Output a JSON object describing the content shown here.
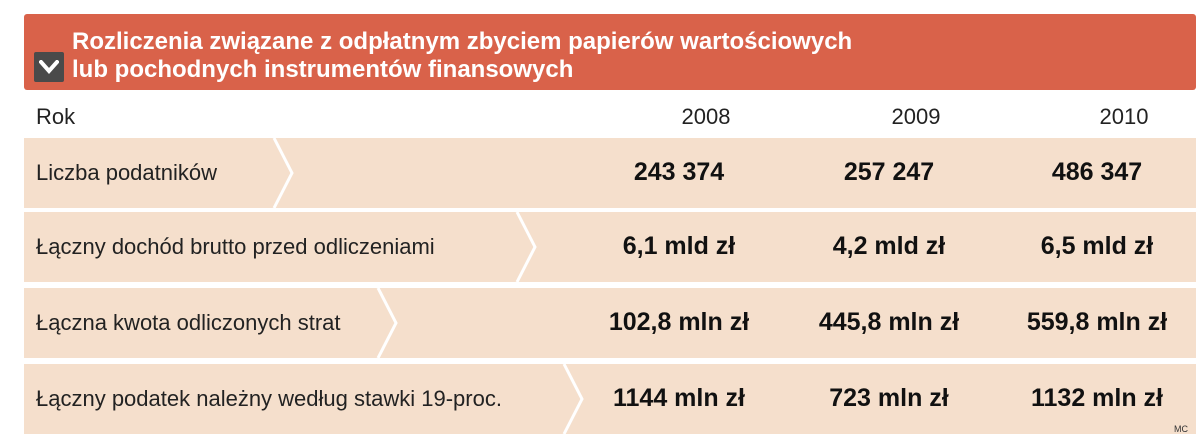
{
  "header": {
    "title_line1": "Rozliczenia związane z odpłatnym zbyciem papierów wartościowych",
    "title_line2": "lub pochodnych instrumentów finansowych"
  },
  "table": {
    "year_header_label": "Rok",
    "years": [
      "2008",
      "2009",
      "2010"
    ],
    "rows": [
      {
        "label": "Liczba podatników",
        "values": [
          "243 374",
          "257 247",
          "486 347"
        ]
      },
      {
        "label": "Łączny dochód brutto przed odliczeniami",
        "values": [
          "6,1 mld zł",
          "4,2 mld zł",
          "6,5 mld zł"
        ]
      },
      {
        "label": "Łączna kwota odliczonych strat",
        "values": [
          "102,8 mln zł",
          "445,8 mln zł",
          "559,8 mln zł"
        ]
      },
      {
        "label": "Łączny podatek należny według stawki 19-proc.",
        "values": [
          "1144 mln zł",
          "723 mln zł",
          "1132 mln zł"
        ]
      }
    ]
  },
  "source": "MC",
  "colors": {
    "header_bg": "#d9624a",
    "row_bg": "#f5dfcc",
    "text": "#222222"
  },
  "chart_data": {
    "type": "table",
    "columns": [
      "Rok",
      "2008",
      "2009",
      "2010"
    ],
    "rows": [
      [
        "Liczba podatników",
        "243 374",
        "257 247",
        "486 347"
      ],
      [
        "Łączny dochód brutto przed odliczeniami",
        "6,1 mld zł",
        "4,2 mld zł",
        "6,5 mld zł"
      ],
      [
        "Łączna kwota odliczonych strat",
        "102,8 mln zł",
        "445,8 mln zł",
        "559,8 mln zł"
      ],
      [
        "Łączny podatek należny według stawki 19-proc.",
        "1144 mln zł",
        "723 mln zł",
        "1132 mln zł"
      ]
    ],
    "title": "Rozliczenia związane z odpłatnym zbyciem papierów wartościowych lub pochodnych instrumentów finansowych"
  }
}
